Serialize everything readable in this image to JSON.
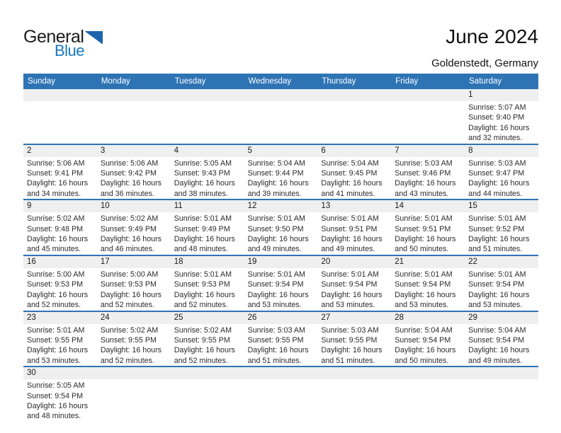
{
  "logo": {
    "line1": "General",
    "line2": "Blue"
  },
  "header": {
    "title": "June 2024",
    "location": "Goldenstedt, Germany"
  },
  "colors": {
    "accent_blue": "#2e74b5",
    "logo_blue": "#1878bd",
    "logo_triangle_blue": "#1c64ab",
    "row_band_gray": "#efefef"
  },
  "weekday_headers": [
    "Sunday",
    "Monday",
    "Tuesday",
    "Wednesday",
    "Thursday",
    "Friday",
    "Saturday"
  ],
  "weeks": [
    [
      null,
      null,
      null,
      null,
      null,
      null,
      {
        "day": "1",
        "sunrise": "Sunrise: 5:07 AM",
        "sunset": "Sunset: 9:40 PM",
        "daylight1": "Daylight: 16 hours",
        "daylight2": "and 32 minutes."
      }
    ],
    [
      {
        "day": "2",
        "sunrise": "Sunrise: 5:06 AM",
        "sunset": "Sunset: 9:41 PM",
        "daylight1": "Daylight: 16 hours",
        "daylight2": "and 34 minutes."
      },
      {
        "day": "3",
        "sunrise": "Sunrise: 5:06 AM",
        "sunset": "Sunset: 9:42 PM",
        "daylight1": "Daylight: 16 hours",
        "daylight2": "and 36 minutes."
      },
      {
        "day": "4",
        "sunrise": "Sunrise: 5:05 AM",
        "sunset": "Sunset: 9:43 PM",
        "daylight1": "Daylight: 16 hours",
        "daylight2": "and 38 minutes."
      },
      {
        "day": "5",
        "sunrise": "Sunrise: 5:04 AM",
        "sunset": "Sunset: 9:44 PM",
        "daylight1": "Daylight: 16 hours",
        "daylight2": "and 39 minutes."
      },
      {
        "day": "6",
        "sunrise": "Sunrise: 5:04 AM",
        "sunset": "Sunset: 9:45 PM",
        "daylight1": "Daylight: 16 hours",
        "daylight2": "and 41 minutes."
      },
      {
        "day": "7",
        "sunrise": "Sunrise: 5:03 AM",
        "sunset": "Sunset: 9:46 PM",
        "daylight1": "Daylight: 16 hours",
        "daylight2": "and 43 minutes."
      },
      {
        "day": "8",
        "sunrise": "Sunrise: 5:03 AM",
        "sunset": "Sunset: 9:47 PM",
        "daylight1": "Daylight: 16 hours",
        "daylight2": "and 44 minutes."
      }
    ],
    [
      {
        "day": "9",
        "sunrise": "Sunrise: 5:02 AM",
        "sunset": "Sunset: 9:48 PM",
        "daylight1": "Daylight: 16 hours",
        "daylight2": "and 45 minutes."
      },
      {
        "day": "10",
        "sunrise": "Sunrise: 5:02 AM",
        "sunset": "Sunset: 9:49 PM",
        "daylight1": "Daylight: 16 hours",
        "daylight2": "and 46 minutes."
      },
      {
        "day": "11",
        "sunrise": "Sunrise: 5:01 AM",
        "sunset": "Sunset: 9:49 PM",
        "daylight1": "Daylight: 16 hours",
        "daylight2": "and 48 minutes."
      },
      {
        "day": "12",
        "sunrise": "Sunrise: 5:01 AM",
        "sunset": "Sunset: 9:50 PM",
        "daylight1": "Daylight: 16 hours",
        "daylight2": "and 49 minutes."
      },
      {
        "day": "13",
        "sunrise": "Sunrise: 5:01 AM",
        "sunset": "Sunset: 9:51 PM",
        "daylight1": "Daylight: 16 hours",
        "daylight2": "and 49 minutes."
      },
      {
        "day": "14",
        "sunrise": "Sunrise: 5:01 AM",
        "sunset": "Sunset: 9:51 PM",
        "daylight1": "Daylight: 16 hours",
        "daylight2": "and 50 minutes."
      },
      {
        "day": "15",
        "sunrise": "Sunrise: 5:01 AM",
        "sunset": "Sunset: 9:52 PM",
        "daylight1": "Daylight: 16 hours",
        "daylight2": "and 51 minutes."
      }
    ],
    [
      {
        "day": "16",
        "sunrise": "Sunrise: 5:00 AM",
        "sunset": "Sunset: 9:53 PM",
        "daylight1": "Daylight: 16 hours",
        "daylight2": "and 52 minutes."
      },
      {
        "day": "17",
        "sunrise": "Sunrise: 5:00 AM",
        "sunset": "Sunset: 9:53 PM",
        "daylight1": "Daylight: 16 hours",
        "daylight2": "and 52 minutes."
      },
      {
        "day": "18",
        "sunrise": "Sunrise: 5:01 AM",
        "sunset": "Sunset: 9:53 PM",
        "daylight1": "Daylight: 16 hours",
        "daylight2": "and 52 minutes."
      },
      {
        "day": "19",
        "sunrise": "Sunrise: 5:01 AM",
        "sunset": "Sunset: 9:54 PM",
        "daylight1": "Daylight: 16 hours",
        "daylight2": "and 53 minutes."
      },
      {
        "day": "20",
        "sunrise": "Sunrise: 5:01 AM",
        "sunset": "Sunset: 9:54 PM",
        "daylight1": "Daylight: 16 hours",
        "daylight2": "and 53 minutes."
      },
      {
        "day": "21",
        "sunrise": "Sunrise: 5:01 AM",
        "sunset": "Sunset: 9:54 PM",
        "daylight1": "Daylight: 16 hours",
        "daylight2": "and 53 minutes."
      },
      {
        "day": "22",
        "sunrise": "Sunrise: 5:01 AM",
        "sunset": "Sunset: 9:54 PM",
        "daylight1": "Daylight: 16 hours",
        "daylight2": "and 53 minutes."
      }
    ],
    [
      {
        "day": "23",
        "sunrise": "Sunrise: 5:01 AM",
        "sunset": "Sunset: 9:55 PM",
        "daylight1": "Daylight: 16 hours",
        "daylight2": "and 53 minutes."
      },
      {
        "day": "24",
        "sunrise": "Sunrise: 5:02 AM",
        "sunset": "Sunset: 9:55 PM",
        "daylight1": "Daylight: 16 hours",
        "daylight2": "and 52 minutes."
      },
      {
        "day": "25",
        "sunrise": "Sunrise: 5:02 AM",
        "sunset": "Sunset: 9:55 PM",
        "daylight1": "Daylight: 16 hours",
        "daylight2": "and 52 minutes."
      },
      {
        "day": "26",
        "sunrise": "Sunrise: 5:03 AM",
        "sunset": "Sunset: 9:55 PM",
        "daylight1": "Daylight: 16 hours",
        "daylight2": "and 51 minutes."
      },
      {
        "day": "27",
        "sunrise": "Sunrise: 5:03 AM",
        "sunset": "Sunset: 9:55 PM",
        "daylight1": "Daylight: 16 hours",
        "daylight2": "and 51 minutes."
      },
      {
        "day": "28",
        "sunrise": "Sunrise: 5:04 AM",
        "sunset": "Sunset: 9:54 PM",
        "daylight1": "Daylight: 16 hours",
        "daylight2": "and 50 minutes."
      },
      {
        "day": "29",
        "sunrise": "Sunrise: 5:04 AM",
        "sunset": "Sunset: 9:54 PM",
        "daylight1": "Daylight: 16 hours",
        "daylight2": "and 49 minutes."
      }
    ],
    [
      {
        "day": "30",
        "sunrise": "Sunrise: 5:05 AM",
        "sunset": "Sunset: 9:54 PM",
        "daylight1": "Daylight: 16 hours",
        "daylight2": "and 48 minutes."
      },
      null,
      null,
      null,
      null,
      null,
      null
    ]
  ]
}
